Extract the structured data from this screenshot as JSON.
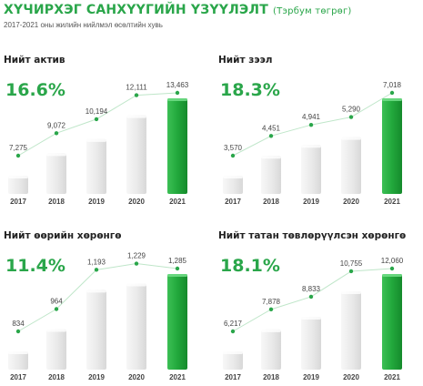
{
  "header": {
    "title": "ХҮЧИРХЭГ САНХҮҮГИЙН ҮЗҮҮЛЭЛТ",
    "unit": "(Тэрбум төгрөг)",
    "subtitle": "2017-2021 оны жилийн нийлмэл өсөлтийн хувь"
  },
  "colors": {
    "accent": "#2aa64a",
    "bar": "#e9e9e9",
    "highlight_bar": "#22a83c"
  },
  "chart_data": [
    {
      "type": "bar",
      "title": "Нийт актив",
      "growth": "16.6%",
      "categories": [
        "2017",
        "2018",
        "2019",
        "2020",
        "2021"
      ],
      "values": [
        7275,
        9072,
        10194,
        12111,
        13463
      ],
      "labels": [
        "7,275",
        "9,072",
        "10,194",
        "12,111",
        "13,463"
      ],
      "highlight": "2021"
    },
    {
      "type": "bar",
      "title": "Нийт зээл",
      "growth": "18.3%",
      "categories": [
        "2017",
        "2018",
        "2019",
        "2020",
        "2021"
      ],
      "values": [
        3570,
        4451,
        4941,
        5290,
        7018
      ],
      "labels": [
        "3,570",
        "4,451",
        "4,941",
        "5,290",
        "7,018"
      ],
      "highlight": "2021"
    },
    {
      "type": "bar",
      "title": "Нийт өөрийн хөрөнгө",
      "growth": "11.4%",
      "categories": [
        "2017",
        "2018",
        "2019",
        "2020",
        "2021"
      ],
      "values": [
        834,
        964,
        1193,
        1229,
        1285
      ],
      "labels": [
        "834",
        "964",
        "1,193",
        "1,229",
        "1,285"
      ],
      "highlight": "2021"
    },
    {
      "type": "bar",
      "title": "Нийт татан төвлөрүүлсэн хөрөнгө",
      "growth": "18.1%",
      "categories": [
        "2017",
        "2018",
        "2019",
        "2020",
        "2021"
      ],
      "values": [
        6217,
        7878,
        8833,
        10755,
        12060
      ],
      "labels": [
        "6,217",
        "7,878",
        "8,833",
        "10,755",
        "12,060"
      ],
      "highlight": "2021"
    }
  ]
}
